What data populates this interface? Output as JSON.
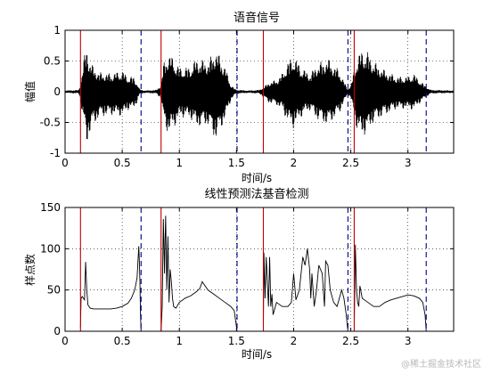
{
  "colors": {
    "signal": "#000000",
    "grid": "#000000",
    "onset_marker": "#c00000",
    "offset_marker": "#00008b"
  },
  "watermark": "@稀土掘金技术社区",
  "chart_data": [
    {
      "type": "line",
      "title": "语音信号",
      "xlabel": "时间/s",
      "ylabel": "幅值",
      "xlim": [
        0,
        3.4
      ],
      "ylim": [
        -1,
        1
      ],
      "x_ticks": [
        0,
        0.5,
        1,
        1.5,
        2,
        2.5,
        3
      ],
      "x_tick_labels": [
        "0",
        "0.5",
        "1",
        "1.5",
        "2",
        "2.5",
        "3"
      ],
      "y_ticks": [
        -1,
        -0.5,
        0,
        0.5,
        1
      ],
      "y_tick_labels": [
        "-1",
        "-0.5",
        "0",
        "0.5",
        "1"
      ],
      "grid": true,
      "series": [
        {
          "style": "envelope",
          "x": [
            0.0,
            0.12,
            0.13,
            0.17,
            0.19,
            0.21,
            0.25,
            0.3,
            0.4,
            0.5,
            0.55,
            0.6,
            0.63,
            0.65,
            0.67,
            0.7,
            0.8,
            0.84,
            0.86,
            0.9,
            0.95,
            1.0,
            1.05,
            1.1,
            1.15,
            1.25,
            1.32,
            1.4,
            1.45,
            1.49,
            1.52,
            1.6,
            1.7,
            1.74,
            1.78,
            1.85,
            1.9,
            1.95,
            2.0,
            2.05,
            2.1,
            2.15,
            2.2,
            2.3,
            2.4,
            2.47,
            2.5,
            2.55,
            2.6,
            2.65,
            2.7,
            2.8,
            2.9,
            3.0,
            3.05,
            3.1,
            3.15,
            3.2,
            3.4
          ],
          "upper": [
            0.02,
            0.03,
            0.1,
            0.6,
            0.75,
            0.55,
            0.4,
            0.32,
            0.3,
            0.35,
            0.25,
            0.25,
            0.15,
            0.05,
            0.03,
            0.02,
            0.03,
            0.12,
            0.45,
            0.65,
            0.55,
            0.4,
            0.4,
            0.42,
            0.55,
            0.5,
            0.7,
            0.42,
            0.12,
            0.04,
            0.03,
            0.02,
            0.03,
            0.08,
            0.15,
            0.2,
            0.3,
            0.5,
            0.6,
            0.45,
            0.35,
            0.3,
            0.45,
            0.55,
            0.35,
            0.05,
            0.1,
            0.55,
            0.7,
            0.65,
            0.5,
            0.35,
            0.25,
            0.25,
            0.3,
            0.2,
            0.1,
            0.03,
            0.02
          ],
          "lower": [
            -0.02,
            -0.03,
            -0.1,
            -0.6,
            -0.9,
            -0.7,
            -0.55,
            -0.42,
            -0.38,
            -0.4,
            -0.3,
            -0.28,
            -0.18,
            -0.05,
            -0.03,
            -0.02,
            -0.03,
            -0.12,
            -0.45,
            -0.7,
            -0.6,
            -0.42,
            -0.42,
            -0.45,
            -0.58,
            -0.55,
            -0.8,
            -0.45,
            -0.15,
            -0.04,
            -0.03,
            -0.02,
            -0.03,
            -0.1,
            -0.18,
            -0.22,
            -0.3,
            -0.5,
            -0.6,
            -0.45,
            -0.35,
            -0.3,
            -0.45,
            -0.55,
            -0.35,
            -0.05,
            -0.1,
            -0.6,
            -0.75,
            -0.65,
            -0.5,
            -0.38,
            -0.28,
            -0.28,
            -0.3,
            -0.2,
            -0.1,
            -0.03,
            -0.02
          ]
        }
      ],
      "markers": [
        {
          "kind": "onset",
          "x": 0.135
        },
        {
          "kind": "offset",
          "x": 0.665
        },
        {
          "kind": "onset",
          "x": 0.84
        },
        {
          "kind": "offset",
          "x": 1.505
        },
        {
          "kind": "onset",
          "x": 1.735
        },
        {
          "kind": "offset",
          "x": 2.475
        },
        {
          "kind": "onset",
          "x": 2.53
        },
        {
          "kind": "offset",
          "x": 3.16
        }
      ]
    },
    {
      "type": "line",
      "title": "线性预测法基音检测",
      "xlabel": "时间/s",
      "ylabel": "样点数",
      "xlim": [
        0,
        3.4
      ],
      "ylim": [
        0,
        150
      ],
      "x_ticks": [
        0,
        0.5,
        1,
        1.5,
        2,
        2.5,
        3
      ],
      "x_tick_labels": [
        "0",
        "0.5",
        "1",
        "1.5",
        "2",
        "2.5",
        "3"
      ],
      "y_ticks": [
        0,
        50,
        100,
        150
      ],
      "y_tick_labels": [
        "0",
        "50",
        "100",
        "150"
      ],
      "grid": true,
      "series": [
        {
          "style": "line",
          "segments": [
            {
              "x": [
                0.135,
                0.14,
                0.15,
                0.16,
                0.17,
                0.18,
                0.19,
                0.2,
                0.22,
                0.25,
                0.3,
                0.35,
                0.4,
                0.45,
                0.5,
                0.55,
                0.58,
                0.61,
                0.63,
                0.645,
                0.65,
                0.655,
                0.66,
                0.665
              ],
              "y": [
                5,
                40,
                42,
                40,
                38,
                84,
                50,
                32,
                28,
                27,
                27,
                27,
                27,
                28,
                30,
                34,
                40,
                50,
                65,
                103,
                85,
                60,
                20,
                0
              ]
            },
            {
              "x": [
                0.84,
                0.85,
                0.86,
                0.87,
                0.875,
                0.88,
                0.89,
                0.9,
                0.91,
                0.92,
                0.93,
                0.94,
                0.95,
                0.97,
                1.0,
                1.05,
                1.1,
                1.15,
                1.18,
                1.2,
                1.25,
                1.3,
                1.35,
                1.4,
                1.45,
                1.48,
                1.495,
                1.505
              ],
              "y": [
                0,
                30,
                136,
                70,
                110,
                140,
                50,
                115,
                35,
                75,
                60,
                40,
                30,
                28,
                35,
                40,
                43,
                48,
                52,
                60,
                50,
                45,
                40,
                35,
                30,
                25,
                10,
                0
              ]
            },
            {
              "x": [
                1.735,
                1.74,
                1.75,
                1.76,
                1.77,
                1.78,
                1.79,
                1.8,
                1.81,
                1.82,
                1.85,
                1.9,
                1.95,
                1.98,
                2.0,
                2.02,
                2.05,
                2.08,
                2.1,
                2.12,
                2.14,
                2.15,
                2.16,
                2.18,
                2.2,
                2.22,
                2.25,
                2.27,
                2.28,
                2.3,
                2.32,
                2.35,
                2.38,
                2.4,
                2.42,
                2.44,
                2.46,
                2.475
              ],
              "y": [
                0,
                95,
                40,
                90,
                60,
                30,
                90,
                30,
                45,
                20,
                35,
                30,
                30,
                35,
                70,
                38,
                50,
                90,
                80,
                100,
                75,
                40,
                70,
                30,
                50,
                80,
                70,
                30,
                85,
                80,
                50,
                35,
                30,
                40,
                50,
                40,
                20,
                0
              ]
            },
            {
              "x": [
                2.53,
                2.54,
                2.55,
                2.56,
                2.57,
                2.58,
                2.6,
                2.65,
                2.7,
                2.75,
                2.8,
                2.85,
                2.9,
                2.95,
                3.0,
                3.05,
                3.1,
                3.13,
                3.15,
                3.16
              ],
              "y": [
                0,
                105,
                50,
                35,
                30,
                55,
                40,
                35,
                30,
                30,
                35,
                38,
                40,
                42,
                44,
                43,
                40,
                35,
                20,
                0
              ]
            }
          ]
        }
      ],
      "markers": [
        {
          "kind": "onset",
          "x": 0.135
        },
        {
          "kind": "offset",
          "x": 0.665
        },
        {
          "kind": "onset",
          "x": 0.84
        },
        {
          "kind": "offset",
          "x": 1.505
        },
        {
          "kind": "onset",
          "x": 1.735
        },
        {
          "kind": "offset",
          "x": 2.475
        },
        {
          "kind": "onset",
          "x": 2.53
        },
        {
          "kind": "offset",
          "x": 3.16
        }
      ]
    }
  ]
}
